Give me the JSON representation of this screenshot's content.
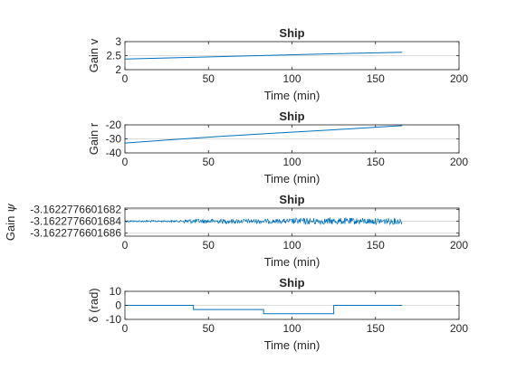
{
  "chart_data": [
    {
      "type": "line",
      "title": "Ship",
      "xlabel": "Time (min)",
      "ylabel": "Gain v",
      "xlim": [
        0,
        200
      ],
      "ylim": [
        2,
        3
      ],
      "xticks": [
        "0",
        "50",
        "100",
        "150",
        "200"
      ],
      "yticks": [
        {
          "value": 2,
          "label": "2"
        },
        {
          "value": 2.5,
          "label": "2.5"
        },
        {
          "value": 3,
          "label": "3"
        }
      ],
      "grid": "y-major",
      "color": "#0072BD",
      "series": [
        {
          "x": [
            0,
            40,
            80,
            120,
            166
          ],
          "y": [
            2.38,
            2.44,
            2.5,
            2.56,
            2.62
          ]
        }
      ]
    },
    {
      "type": "line",
      "title": "Ship",
      "xlabel": "Time (min)",
      "ylabel": "Gain r",
      "xlim": [
        0,
        200
      ],
      "ylim": [
        -40,
        -20
      ],
      "xticks": [
        "0",
        "50",
        "100",
        "150",
        "200"
      ],
      "yticks": [
        {
          "value": -20,
          "label": "-20"
        },
        {
          "value": -30,
          "label": "-30"
        },
        {
          "value": -40,
          "label": "-40"
        }
      ],
      "grid": "y-major",
      "color": "#0072BD",
      "series": [
        {
          "x": [
            0,
            30,
            60,
            90,
            120,
            150,
            166
          ],
          "y": [
            -33,
            -30.4,
            -28,
            -25.9,
            -23.9,
            -21.7,
            -20.6
          ]
        }
      ]
    },
    {
      "type": "line",
      "title": "Ship",
      "xlabel": "Time (min)",
      "ylabel": "Gain ",
      "ylabel_symbol": "ψ",
      "xlim": [
        0,
        200
      ],
      "ylim": [
        -3.16227766016865,
        -3.16227766016818
      ],
      "xticks": [
        "0",
        "50",
        "100",
        "150",
        "200"
      ],
      "yticks": [
        {
          "value": -3.1622776601682,
          "label": "-3.1622776601682"
        },
        {
          "value": -3.1622776601684,
          "label": "-3.1622776601684"
        },
        {
          "value": -3.1622776601686,
          "label": "-3.1622776601686"
        }
      ],
      "grid": "y-major",
      "color": "#0072BD",
      "series": [
        {
          "x": [
            0,
            166
          ],
          "y": [
            -3.1622776601684,
            -3.1622776601684
          ],
          "noise": "random fluctuation growing after t≈35 min"
        }
      ]
    },
    {
      "type": "line",
      "title": "Ship",
      "xlabel": "Time (min)",
      "ylabel": "δ (rad)",
      "xlim": [
        0,
        200
      ],
      "ylim": [
        -10,
        10
      ],
      "xticks": [
        "0",
        "50",
        "100",
        "150",
        "200"
      ],
      "yticks": [
        {
          "value": 10,
          "label": "10"
        },
        {
          "value": 0,
          "label": "0"
        },
        {
          "value": -10,
          "label": "-10"
        }
      ],
      "grid": "y-major",
      "color": "#0072BD",
      "series": [
        {
          "x": [
            0,
            41,
            41,
            83,
            83,
            125,
            125,
            166
          ],
          "y": [
            0,
            0,
            -3,
            -3,
            -6,
            -6,
            0,
            0
          ]
        }
      ]
    }
  ]
}
